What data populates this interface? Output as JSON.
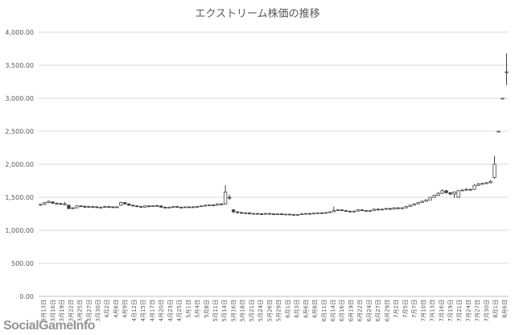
{
  "chart_data": {
    "type": "candlestick",
    "title": "エクストリーム株価の推移",
    "ylim": [
      0,
      4000
    ],
    "yticks": [
      "0.00",
      "500.00",
      "1,000.00",
      "1,500.00",
      "2,000.00",
      "2,500.00",
      "3,000.00",
      "3,500.00",
      "4,000.00"
    ],
    "grid": true,
    "colors": {
      "up_fill": "#ffffff",
      "down_fill": "#404040",
      "line": "#404040",
      "grid": "#d9d9d9",
      "axis": "#bfbfbf"
    },
    "xtick_labels": [
      "3月13日",
      "3月16日",
      "3月19日",
      "3月22日",
      "3月25日",
      "3月27日",
      "3月30日",
      "4月2日",
      "4月6日",
      "4月9日",
      "4月12日",
      "4月15日",
      "4月17日",
      "4月20日",
      "4月23日",
      "4月25日",
      "5月1日",
      "5月4日",
      "5月8日",
      "5月11日",
      "5月14日",
      "5月16日",
      "5月18日",
      "5月21日",
      "5月24日",
      "5月26日",
      "5月29日",
      "6月1日",
      "6月3日",
      "6月6日",
      "6月8日",
      "6月11日",
      "6月14日",
      "6月16日",
      "6月19日",
      "6月22日",
      "6月24日",
      "6月27日",
      "6月29日",
      "7月2日",
      "7月5日",
      "7月7日",
      "7月10日",
      "7月13日",
      "7月16日",
      "7月19日",
      "7月21日",
      "7月24日",
      "7月27日",
      "7月30日",
      "8月1日",
      "8月6日"
    ],
    "candles": [
      [
        1380,
        1395,
        1370,
        1400
      ],
      [
        1395,
        1420,
        1385,
        1430
      ],
      [
        1420,
        1440,
        1410,
        1450
      ],
      [
        1430,
        1410,
        1400,
        1440
      ],
      [
        1410,
        1405,
        1395,
        1420
      ],
      [
        1405,
        1395,
        1385,
        1415
      ],
      [
        1390,
        1400,
        1380,
        1430
      ],
      [
        1380,
        1330,
        1320,
        1390
      ],
      [
        1330,
        1340,
        1320,
        1350
      ],
      [
        1340,
        1370,
        1335,
        1380
      ],
      [
        1370,
        1365,
        1355,
        1380
      ],
      [
        1365,
        1350,
        1340,
        1370
      ],
      [
        1350,
        1360,
        1345,
        1370
      ],
      [
        1360,
        1355,
        1345,
        1365
      ],
      [
        1355,
        1345,
        1340,
        1365
      ],
      [
        1345,
        1350,
        1340,
        1360
      ],
      [
        1350,
        1360,
        1345,
        1370
      ],
      [
        1360,
        1355,
        1345,
        1365
      ],
      [
        1355,
        1350,
        1340,
        1360
      ],
      [
        1350,
        1355,
        1345,
        1365
      ],
      [
        1380,
        1420,
        1370,
        1430
      ],
      [
        1420,
        1400,
        1390,
        1425
      ],
      [
        1400,
        1380,
        1370,
        1410
      ],
      [
        1380,
        1370,
        1360,
        1390
      ],
      [
        1370,
        1360,
        1350,
        1380
      ],
      [
        1360,
        1350,
        1345,
        1370
      ],
      [
        1350,
        1370,
        1345,
        1375
      ],
      [
        1370,
        1360,
        1350,
        1375
      ],
      [
        1360,
        1375,
        1355,
        1380
      ],
      [
        1375,
        1370,
        1360,
        1385
      ],
      [
        1370,
        1350,
        1340,
        1375
      ],
      [
        1350,
        1345,
        1335,
        1360
      ],
      [
        1345,
        1350,
        1340,
        1360
      ],
      [
        1350,
        1360,
        1345,
        1365
      ],
      [
        1360,
        1350,
        1340,
        1365
      ],
      [
        1350,
        1345,
        1335,
        1360
      ],
      [
        1345,
        1355,
        1340,
        1360
      ],
      [
        1355,
        1350,
        1340,
        1360
      ],
      [
        1350,
        1355,
        1345,
        1365
      ],
      [
        1355,
        1360,
        1350,
        1370
      ],
      [
        1360,
        1370,
        1355,
        1375
      ],
      [
        1370,
        1380,
        1365,
        1390
      ],
      [
        1380,
        1385,
        1370,
        1395
      ],
      [
        1385,
        1380,
        1370,
        1395
      ],
      [
        1380,
        1400,
        1375,
        1410
      ],
      [
        1400,
        1390,
        1380,
        1405
      ],
      [
        1400,
        1580,
        1390,
        1680
      ],
      [
        1500,
        1490,
        1460,
        1540
      ],
      [
        1310,
        1280,
        1260,
        1320
      ],
      [
        1280,
        1270,
        1255,
        1290
      ],
      [
        1270,
        1260,
        1250,
        1280
      ],
      [
        1260,
        1265,
        1250,
        1275
      ],
      [
        1265,
        1250,
        1240,
        1270
      ],
      [
        1250,
        1255,
        1240,
        1265
      ],
      [
        1255,
        1250,
        1240,
        1260
      ],
      [
        1250,
        1245,
        1235,
        1260
      ],
      [
        1245,
        1255,
        1240,
        1260
      ],
      [
        1255,
        1250,
        1240,
        1260
      ],
      [
        1250,
        1245,
        1235,
        1255
      ],
      [
        1245,
        1250,
        1240,
        1255
      ],
      [
        1250,
        1240,
        1230,
        1255
      ],
      [
        1240,
        1245,
        1235,
        1250
      ],
      [
        1245,
        1240,
        1230,
        1250
      ],
      [
        1240,
        1235,
        1225,
        1245
      ],
      [
        1235,
        1240,
        1230,
        1245
      ],
      [
        1240,
        1250,
        1235,
        1255
      ],
      [
        1250,
        1255,
        1245,
        1260
      ],
      [
        1255,
        1250,
        1245,
        1260
      ],
      [
        1250,
        1260,
        1245,
        1265
      ],
      [
        1260,
        1265,
        1255,
        1270
      ],
      [
        1265,
        1260,
        1250,
        1270
      ],
      [
        1260,
        1270,
        1255,
        1275
      ],
      [
        1270,
        1280,
        1265,
        1285
      ],
      [
        1280,
        1300,
        1275,
        1360
      ],
      [
        1300,
        1310,
        1295,
        1320
      ],
      [
        1310,
        1300,
        1290,
        1315
      ],
      [
        1300,
        1290,
        1280,
        1305
      ],
      [
        1290,
        1280,
        1270,
        1295
      ],
      [
        1280,
        1290,
        1275,
        1300
      ],
      [
        1290,
        1310,
        1285,
        1320
      ],
      [
        1310,
        1300,
        1295,
        1320
      ],
      [
        1300,
        1290,
        1285,
        1305
      ],
      [
        1290,
        1300,
        1285,
        1310
      ],
      [
        1300,
        1320,
        1295,
        1330
      ],
      [
        1320,
        1310,
        1300,
        1330
      ],
      [
        1310,
        1320,
        1305,
        1330
      ],
      [
        1320,
        1330,
        1315,
        1340
      ],
      [
        1330,
        1320,
        1315,
        1340
      ],
      [
        1320,
        1340,
        1315,
        1350
      ],
      [
        1340,
        1330,
        1320,
        1350
      ],
      [
        1330,
        1340,
        1325,
        1350
      ],
      [
        1340,
        1360,
        1335,
        1370
      ],
      [
        1360,
        1380,
        1355,
        1390
      ],
      [
        1380,
        1400,
        1375,
        1410
      ],
      [
        1400,
        1420,
        1395,
        1430
      ],
      [
        1420,
        1440,
        1415,
        1450
      ],
      [
        1440,
        1460,
        1435,
        1470
      ],
      [
        1460,
        1500,
        1455,
        1510
      ],
      [
        1500,
        1530,
        1490,
        1540
      ],
      [
        1530,
        1560,
        1520,
        1580
      ],
      [
        1560,
        1600,
        1550,
        1620
      ],
      [
        1600,
        1570,
        1555,
        1610
      ],
      [
        1570,
        1550,
        1530,
        1580
      ],
      [
        1550,
        1580,
        1490,
        1590
      ],
      [
        1500,
        1600,
        1490,
        1610
      ],
      [
        1600,
        1610,
        1590,
        1620
      ],
      [
        1610,
        1620,
        1600,
        1640
      ],
      [
        1620,
        1610,
        1600,
        1630
      ],
      [
        1620,
        1680,
        1610,
        1700
      ],
      [
        1680,
        1700,
        1670,
        1720
      ],
      [
        1700,
        1710,
        1690,
        1720
      ],
      [
        1710,
        1720,
        1700,
        1730
      ],
      [
        1720,
        1740,
        1710,
        1760
      ],
      [
        1800,
        2000,
        1780,
        2130
      ],
      [
        2500,
        2500,
        2500,
        2500
      ],
      [
        3000,
        3000,
        3000,
        3000
      ],
      [
        3400,
        3400,
        3200,
        3680
      ]
    ]
  },
  "watermark": {
    "text": "SocialGameInfo"
  }
}
